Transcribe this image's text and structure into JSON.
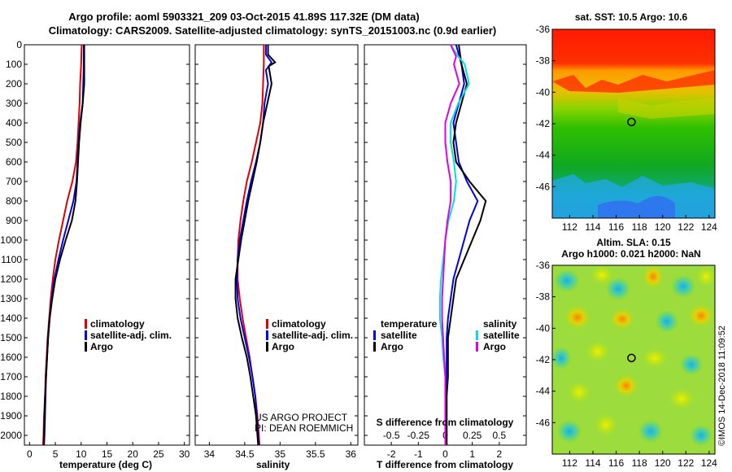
{
  "title": {
    "line1": "Argo profile: aoml 5903321_209 03-Oct-2015 41.89S 117.32E (DM data)",
    "line2": "Climatology: CARS2009. Satellite-adjusted climatology: synTS_20151003.nc (0.9d earlier)"
  },
  "colors": {
    "climatology": "#e00000",
    "satellite": "#0000e0",
    "argo": "#000000",
    "s_satellite": "#00e0e0",
    "s_argo": "#e000e0"
  },
  "chart_data": [
    {
      "type": "line",
      "name": "temperature",
      "xlabel": "temperature (deg C)",
      "xlim": [
        -1,
        31
      ],
      "ylim": [
        2050,
        0
      ],
      "xticks": [
        0,
        5,
        10,
        15,
        20,
        25,
        30
      ],
      "yticks": [
        0,
        100,
        200,
        300,
        400,
        500,
        600,
        700,
        800,
        900,
        1000,
        1100,
        1200,
        1300,
        1400,
        1500,
        1600,
        1700,
        1800,
        1900,
        2000
      ],
      "legend": [
        "climatology",
        "satellite-adj. clim.",
        "Argo"
      ],
      "series": [
        {
          "name": "climatology",
          "color": "#e00000",
          "points": [
            [
              10.1,
              0
            ],
            [
              10.0,
              100
            ],
            [
              9.8,
              200
            ],
            [
              9.7,
              300
            ],
            [
              9.5,
              400
            ],
            [
              9.3,
              500
            ],
            [
              9.0,
              600
            ],
            [
              8.3,
              700
            ],
            [
              7.3,
              800
            ],
            [
              6.5,
              900
            ],
            [
              5.7,
              1000
            ],
            [
              5.0,
              1100
            ],
            [
              4.5,
              1200
            ],
            [
              4.1,
              1300
            ],
            [
              3.8,
              1400
            ],
            [
              3.5,
              1500
            ],
            [
              3.3,
              1600
            ],
            [
              3.1,
              1700
            ],
            [
              3.0,
              1800
            ],
            [
              2.8,
              1900
            ],
            [
              2.7,
              2000
            ],
            [
              2.6,
              2050
            ]
          ]
        },
        {
          "name": "satellite-adj. clim.",
          "color": "#0000e0",
          "points": [
            [
              10.5,
              0
            ],
            [
              10.5,
              100
            ],
            [
              10.4,
              200
            ],
            [
              10.3,
              300
            ],
            [
              9.8,
              400
            ],
            [
              9.5,
              500
            ],
            [
              9.3,
              600
            ],
            [
              9.1,
              700
            ],
            [
              8.5,
              800
            ],
            [
              7.5,
              900
            ],
            [
              6.5,
              1000
            ],
            [
              5.6,
              1100
            ],
            [
              4.8,
              1200
            ],
            [
              4.3,
              1300
            ],
            [
              3.9,
              1400
            ],
            [
              3.6,
              1500
            ],
            [
              3.4,
              1600
            ],
            [
              3.2,
              1700
            ],
            [
              3.1,
              1800
            ],
            [
              3.0,
              1900
            ],
            [
              2.9,
              2000
            ],
            [
              2.8,
              2050
            ]
          ]
        },
        {
          "name": "Argo",
          "color": "#000000",
          "points": [
            [
              10.6,
              0
            ],
            [
              10.6,
              100
            ],
            [
              10.6,
              200
            ],
            [
              10.3,
              300
            ],
            [
              9.9,
              400
            ],
            [
              9.6,
              500
            ],
            [
              9.4,
              600
            ],
            [
              9.2,
              700
            ],
            [
              8.9,
              800
            ],
            [
              8.2,
              900
            ],
            [
              7.0,
              1000
            ],
            [
              5.9,
              1100
            ],
            [
              5.0,
              1200
            ],
            [
              4.4,
              1300
            ],
            [
              3.9,
              1400
            ],
            [
              3.6,
              1500
            ],
            [
              3.4,
              1600
            ],
            [
              3.2,
              1700
            ],
            [
              3.0,
              1800
            ],
            [
              2.9,
              1900
            ],
            [
              2.8,
              2000
            ],
            [
              2.8,
              2050
            ]
          ]
        }
      ]
    },
    {
      "type": "line",
      "name": "salinity",
      "xlabel": "salinity",
      "xlim": [
        33.8,
        36.1
      ],
      "ylim": [
        2050,
        0
      ],
      "xticks": [
        34,
        34.5,
        35,
        35.5,
        36
      ],
      "legend": [
        "climatology",
        "satellite-adj. clim.",
        "Argo"
      ],
      "series": [
        {
          "name": "climatology",
          "color": "#e00000",
          "points": [
            [
              34.77,
              0
            ],
            [
              34.77,
              100
            ],
            [
              34.76,
              200
            ],
            [
              34.75,
              300
            ],
            [
              34.72,
              400
            ],
            [
              34.66,
              500
            ],
            [
              34.6,
              600
            ],
            [
              34.53,
              700
            ],
            [
              34.48,
              800
            ],
            [
              34.44,
              900
            ],
            [
              34.41,
              1000
            ],
            [
              34.4,
              1100
            ],
            [
              34.4,
              1200
            ],
            [
              34.43,
              1300
            ],
            [
              34.47,
              1400
            ],
            [
              34.52,
              1500
            ],
            [
              34.57,
              1600
            ],
            [
              34.61,
              1700
            ],
            [
              34.65,
              1800
            ],
            [
              34.68,
              1900
            ],
            [
              34.7,
              2000
            ],
            [
              34.71,
              2050
            ]
          ]
        },
        {
          "name": "satellite-adj. clim.",
          "color": "#0000e0",
          "points": [
            [
              34.8,
              0
            ],
            [
              34.8,
              50
            ],
            [
              34.88,
              90
            ],
            [
              34.8,
              130
            ],
            [
              34.83,
              200
            ],
            [
              34.78,
              300
            ],
            [
              34.76,
              400
            ],
            [
              34.72,
              500
            ],
            [
              34.66,
              600
            ],
            [
              34.59,
              700
            ],
            [
              34.53,
              800
            ],
            [
              34.48,
              900
            ],
            [
              34.43,
              1000
            ],
            [
              34.4,
              1100
            ],
            [
              34.39,
              1200
            ],
            [
              34.4,
              1300
            ],
            [
              34.44,
              1400
            ],
            [
              34.5,
              1500
            ],
            [
              34.56,
              1600
            ],
            [
              34.61,
              1700
            ],
            [
              34.65,
              1800
            ],
            [
              34.67,
              1900
            ],
            [
              34.69,
              2000
            ],
            [
              34.7,
              2050
            ]
          ]
        },
        {
          "name": "Argo",
          "color": "#000000",
          "points": [
            [
              34.83,
              0
            ],
            [
              34.83,
              50
            ],
            [
              34.93,
              90
            ],
            [
              34.84,
              110
            ],
            [
              34.88,
              200
            ],
            [
              34.82,
              300
            ],
            [
              34.76,
              400
            ],
            [
              34.72,
              500
            ],
            [
              34.67,
              600
            ],
            [
              34.61,
              700
            ],
            [
              34.55,
              800
            ],
            [
              34.5,
              900
            ],
            [
              34.45,
              1000
            ],
            [
              34.41,
              1100
            ],
            [
              34.37,
              1200
            ],
            [
              34.37,
              1300
            ],
            [
              34.4,
              1400
            ],
            [
              34.46,
              1500
            ],
            [
              34.53,
              1600
            ],
            [
              34.58,
              1700
            ],
            [
              34.62,
              1800
            ],
            [
              34.66,
              1900
            ],
            [
              34.68,
              2000
            ],
            [
              34.69,
              2050
            ]
          ]
        }
      ]
    },
    {
      "type": "line",
      "name": "difference",
      "xlabel": "T difference from climatology",
      "xlabel2": "S difference from climatology",
      "xlim": [
        -3,
        3
      ],
      "ylim": [
        2050,
        0
      ],
      "xticks": [
        -2,
        -1,
        0,
        1,
        2
      ],
      "xticks2": [
        "-0.5",
        "-0.25",
        "0",
        "0.25",
        "0.5"
      ],
      "legend_left_title": "temperature",
      "legend_right_title": "salinity",
      "legend_left": [
        "satellite",
        "Argo"
      ],
      "legend_right": [
        "satellite",
        "Argo"
      ],
      "series": [
        {
          "name": "T satellite",
          "color": "#0000e0",
          "points": [
            [
              0.4,
              0
            ],
            [
              0.6,
              100
            ],
            [
              0.7,
              200
            ],
            [
              0.5,
              300
            ],
            [
              0.3,
              400
            ],
            [
              0.4,
              500
            ],
            [
              0.5,
              600
            ],
            [
              0.8,
              700
            ],
            [
              1.2,
              800
            ],
            [
              0.9,
              900
            ],
            [
              0.7,
              1000
            ],
            [
              0.5,
              1100
            ],
            [
              0.3,
              1200
            ],
            [
              0.2,
              1300
            ],
            [
              0.1,
              1400
            ],
            [
              0.05,
              1500
            ],
            [
              0.05,
              1600
            ],
            [
              0.05,
              1700
            ],
            [
              0.05,
              1800
            ],
            [
              0.05,
              1900
            ],
            [
              0.05,
              2000
            ],
            [
              0.05,
              2050
            ]
          ]
        },
        {
          "name": "T Argo",
          "color": "#000000",
          "points": [
            [
              0.5,
              0
            ],
            [
              0.6,
              100
            ],
            [
              0.8,
              200
            ],
            [
              0.6,
              300
            ],
            [
              0.4,
              400
            ],
            [
              0.3,
              500
            ],
            [
              0.4,
              600
            ],
            [
              0.9,
              700
            ],
            [
              1.5,
              800
            ],
            [
              1.3,
              900
            ],
            [
              1.0,
              1000
            ],
            [
              0.7,
              1100
            ],
            [
              0.4,
              1200
            ],
            [
              0.3,
              1300
            ],
            [
              0.2,
              1400
            ],
            [
              0.1,
              1500
            ],
            [
              0.1,
              1600
            ],
            [
              0.1,
              1700
            ],
            [
              0.05,
              1800
            ],
            [
              0.05,
              1900
            ],
            [
              0.05,
              2000
            ],
            [
              0.05,
              2050
            ]
          ]
        },
        {
          "name": "S satellite",
          "color": "#00e0e0",
          "points": [
            [
              0.05,
              0
            ],
            [
              0.12,
              60
            ],
            [
              0.18,
              100
            ],
            [
              0.22,
              200
            ],
            [
              0.12,
              300
            ],
            [
              0.05,
              400
            ],
            [
              0.05,
              500
            ],
            [
              0.08,
              600
            ],
            [
              0.1,
              700
            ],
            [
              0.08,
              800
            ],
            [
              0.03,
              900
            ],
            [
              0.0,
              1000
            ],
            [
              -0.02,
              1100
            ],
            [
              -0.04,
              1200
            ],
            [
              -0.05,
              1300
            ],
            [
              -0.05,
              1400
            ],
            [
              -0.03,
              1500
            ],
            [
              -0.02,
              1600
            ],
            [
              0.0,
              1700
            ],
            [
              0.0,
              1800
            ],
            [
              0.0,
              1900
            ],
            [
              0.0,
              2000
            ],
            [
              0.0,
              2050
            ]
          ]
        },
        {
          "name": "S Argo",
          "color": "#e000e0",
          "points": [
            [
              0.05,
              0
            ],
            [
              0.1,
              60
            ],
            [
              0.08,
              100
            ],
            [
              0.13,
              200
            ],
            [
              0.05,
              300
            ],
            [
              0.0,
              400
            ],
            [
              0.0,
              500
            ],
            [
              0.02,
              600
            ],
            [
              0.05,
              700
            ],
            [
              0.05,
              800
            ],
            [
              0.02,
              900
            ],
            [
              0.0,
              1000
            ],
            [
              -0.01,
              1100
            ],
            [
              -0.02,
              1200
            ],
            [
              -0.03,
              1300
            ],
            [
              -0.03,
              1400
            ],
            [
              -0.02,
              1500
            ],
            [
              -0.01,
              1600
            ],
            [
              0.0,
              1700
            ],
            [
              0.0,
              1800
            ],
            [
              0.0,
              1900
            ],
            [
              0.0,
              2000
            ],
            [
              0.0,
              2050
            ]
          ]
        }
      ]
    },
    {
      "type": "heatmap",
      "name": "sst map",
      "title": "sat. SST: 10.5 Argo: 10.6",
      "xlim": [
        110.5,
        124.5
      ],
      "ylim": [
        -48,
        -36
      ],
      "xticks": [
        112,
        114,
        116,
        118,
        120,
        122,
        124
      ],
      "yticks": [
        -36,
        -38,
        -40,
        -42,
        -44,
        -46
      ],
      "marker": {
        "lon": 117.32,
        "lat": -41.89
      }
    },
    {
      "type": "heatmap",
      "name": "sla map",
      "title": "Altim. SLA: 0.15",
      "title2": "Argo h1000: 0.021 h2000: NaN",
      "xlim": [
        110.5,
        124.5
      ],
      "ylim": [
        -48,
        -36
      ],
      "xticks": [
        112,
        114,
        116,
        118,
        120,
        122,
        124
      ],
      "yticks": [
        -36,
        -38,
        -40,
        -42,
        -44,
        -46
      ],
      "marker": {
        "lon": 117.32,
        "lat": -41.89
      }
    }
  ],
  "credits": {
    "project": "US ARGO PROJECT",
    "pi": "PI: DEAN ROEMMICH",
    "imos": "©IMOS 14-Dec-2018 11:09:52"
  }
}
